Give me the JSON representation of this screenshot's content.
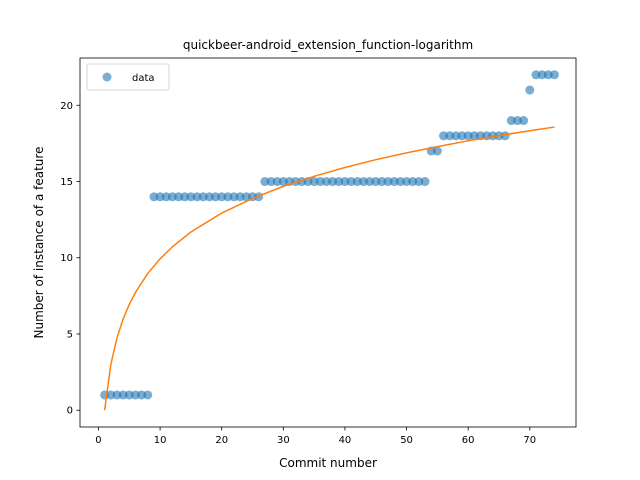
{
  "chart_data": {
    "type": "scatter",
    "title": "quickbeer-android_extension_function-logarithm",
    "xlabel": "Commit number",
    "ylabel": "Number of instance of a feature",
    "xlim": [
      -3,
      77.5
    ],
    "ylim": [
      -1.1,
      23.1
    ],
    "xticks": [
      0,
      10,
      20,
      30,
      40,
      50,
      60,
      70
    ],
    "yticks": [
      0,
      5,
      10,
      15,
      20
    ],
    "grid": false,
    "legend_position": "top-left",
    "series": [
      {
        "name": "data",
        "kind": "scatter",
        "color": "#1f77b4",
        "x": [
          1,
          2,
          3,
          4,
          5,
          6,
          7,
          8,
          9,
          10,
          11,
          12,
          13,
          14,
          15,
          16,
          17,
          18,
          19,
          20,
          21,
          22,
          23,
          24,
          25,
          26,
          27,
          28,
          29,
          30,
          31,
          32,
          33,
          34,
          35,
          36,
          37,
          38,
          39,
          40,
          41,
          42,
          43,
          44,
          45,
          46,
          47,
          48,
          49,
          50,
          51,
          52,
          53,
          54,
          55,
          56,
          57,
          58,
          59,
          60,
          61,
          62,
          63,
          64,
          65,
          66,
          67,
          68,
          69,
          70,
          71,
          72,
          73,
          74
        ],
        "y": [
          1,
          1,
          1,
          1,
          1,
          1,
          1,
          1,
          14,
          14,
          14,
          14,
          14,
          14,
          14,
          14,
          14,
          14,
          14,
          14,
          14,
          14,
          14,
          14,
          14,
          14,
          15,
          15,
          15,
          15,
          15,
          15,
          15,
          15,
          15,
          15,
          15,
          15,
          15,
          15,
          15,
          15,
          15,
          15,
          15,
          15,
          15,
          15,
          15,
          15,
          15,
          15,
          15,
          17,
          17,
          18,
          18,
          18,
          18,
          18,
          18,
          18,
          18,
          18,
          18,
          18,
          19,
          19,
          19,
          21,
          22,
          22,
          22,
          22
        ]
      },
      {
        "name": "",
        "kind": "line",
        "color": "#ff7f0e",
        "x": [
          1,
          2,
          3,
          4,
          5,
          6,
          8,
          10,
          12,
          15,
          20,
          25,
          30,
          35,
          40,
          45,
          50,
          55,
          60,
          65,
          70,
          74
        ],
        "y": [
          0.0,
          2.99,
          4.74,
          5.98,
          6.94,
          7.73,
          8.97,
          9.93,
          10.72,
          11.69,
          12.93,
          13.89,
          14.68,
          15.34,
          15.92,
          16.43,
          16.88,
          17.29,
          17.67,
          18.01,
          18.33,
          18.57
        ]
      }
    ]
  }
}
